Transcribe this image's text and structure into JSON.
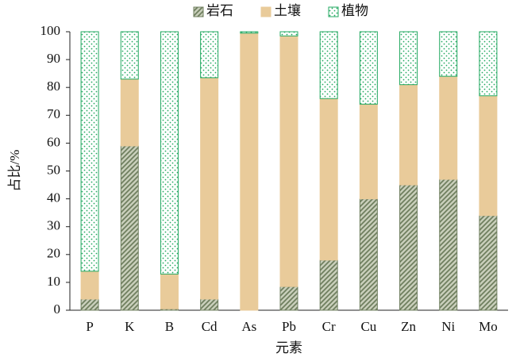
{
  "chart_data": {
    "type": "stacked_bar",
    "x_label": "元素",
    "y_label": "占比/%",
    "categories": [
      "P",
      "K",
      "B",
      "Cd",
      "As",
      "Pb",
      "Cr",
      "Cu",
      "Zn",
      "Ni",
      "Mo"
    ],
    "series": [
      {
        "name": "岩石",
        "color": "#6f7f5f",
        "pattern": "diagonal",
        "values": [
          4,
          59,
          0.5,
          4,
          0,
          8.5,
          18,
          40,
          45,
          47,
          34
        ]
      },
      {
        "name": "土壤",
        "color": "#e9cb9a",
        "pattern": "solid",
        "values": [
          10,
          24,
          12.5,
          79.5,
          99.5,
          90,
          58,
          34,
          36,
          37,
          43
        ]
      },
      {
        "name": "植物",
        "color": "#22a860",
        "pattern": "dots",
        "values": [
          86,
          17,
          87,
          16.5,
          0.5,
          1.5,
          24,
          26,
          19,
          16,
          23
        ]
      }
    ],
    "ylim": [
      0,
      100
    ],
    "yticks": [
      0,
      10,
      20,
      30,
      40,
      50,
      60,
      70,
      80,
      90,
      100
    ],
    "legend": "top",
    "grid": false
  }
}
